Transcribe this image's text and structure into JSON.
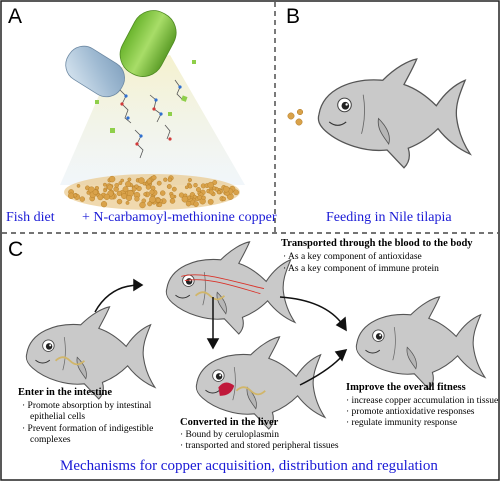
{
  "panels": {
    "a": {
      "letter": "A",
      "caption_left": "Fish diet",
      "caption_right": "+ N-carbamoyl-methionine copper"
    },
    "b": {
      "letter": "B",
      "caption": "Feeding in Nile tilapia"
    },
    "c": {
      "letter": "C",
      "transport": {
        "title": "Transported through the blood to the body",
        "items": [
          "· As a key component of antioxidase",
          "· As a key component of immune protein"
        ]
      },
      "intestine": {
        "title": "Enter in the intestine",
        "items": [
          "· Promote absorption by intestinal",
          "epithelial cells",
          "· Prevent formation of indigestible",
          "complexes"
        ]
      },
      "liver": {
        "title": "Converted in the liver",
        "items": [
          "· Bound by ceruloplasmin",
          "· transported and stored peripheral tissues"
        ]
      },
      "fitness": {
        "title": "Improve the overall fitness",
        "items": [
          "· increase copper accumulation in tissue",
          "· promote antioxidative responses",
          "· regulate immunity response"
        ]
      },
      "caption": "Mechanisms for copper acquisition, distribution and regulation"
    }
  },
  "colors": {
    "caption_blue": "#1a1ad6",
    "fish_body": "#c9c9c9",
    "fish_outline": "#555555",
    "capsule_green": "#8fcf4a",
    "capsule_blue": "#a9c3d9",
    "pellet": "#d9a24a",
    "liver": "#c0183a",
    "blood_vessel": "#d9332a"
  }
}
